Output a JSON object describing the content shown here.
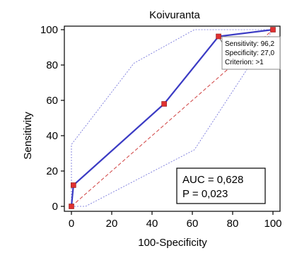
{
  "chart_data": {
    "type": "line",
    "title": "Koivuranta",
    "xlabel": "100-Specificity",
    "ylabel": "Sensitivity",
    "xlim": [
      0,
      100
    ],
    "ylim": [
      0,
      100
    ],
    "xticks": [
      0,
      20,
      40,
      60,
      80,
      100
    ],
    "yticks": [
      0,
      20,
      40,
      60,
      80,
      100
    ],
    "roc_curve": {
      "color": "#3b3bc4",
      "marker_color": "#e03030",
      "points": [
        {
          "x": 0,
          "y": 0
        },
        {
          "x": 1,
          "y": 12
        },
        {
          "x": 46,
          "y": 58
        },
        {
          "x": 73,
          "y": 96.2
        },
        {
          "x": 100,
          "y": 100
        }
      ]
    },
    "confidence_upper": {
      "color": "#6a6ad8",
      "points": [
        {
          "x": 0,
          "y": 0
        },
        {
          "x": 0,
          "y": 35
        },
        {
          "x": 31,
          "y": 81
        },
        {
          "x": 61,
          "y": 100
        },
        {
          "x": 100,
          "y": 100
        }
      ]
    },
    "confidence_lower": {
      "color": "#6a6ad8",
      "points": [
        {
          "x": 0,
          "y": 0
        },
        {
          "x": 7,
          "y": 0
        },
        {
          "x": 61,
          "y": 32
        },
        {
          "x": 100,
          "y": 100
        }
      ]
    },
    "reference_line": {
      "color": "#d04040",
      "points": [
        {
          "x": 0,
          "y": 0
        },
        {
          "x": 100,
          "y": 100
        }
      ]
    },
    "tooltip": {
      "lines": [
        "Sensitivity: 96,2",
        "Specificity: 27,0",
        "Criterion: >1"
      ],
      "anchor_point": {
        "x": 73,
        "y": 96.2
      }
    },
    "stats": {
      "auc": "AUC = 0,628",
      "p": "P = 0,023"
    }
  }
}
